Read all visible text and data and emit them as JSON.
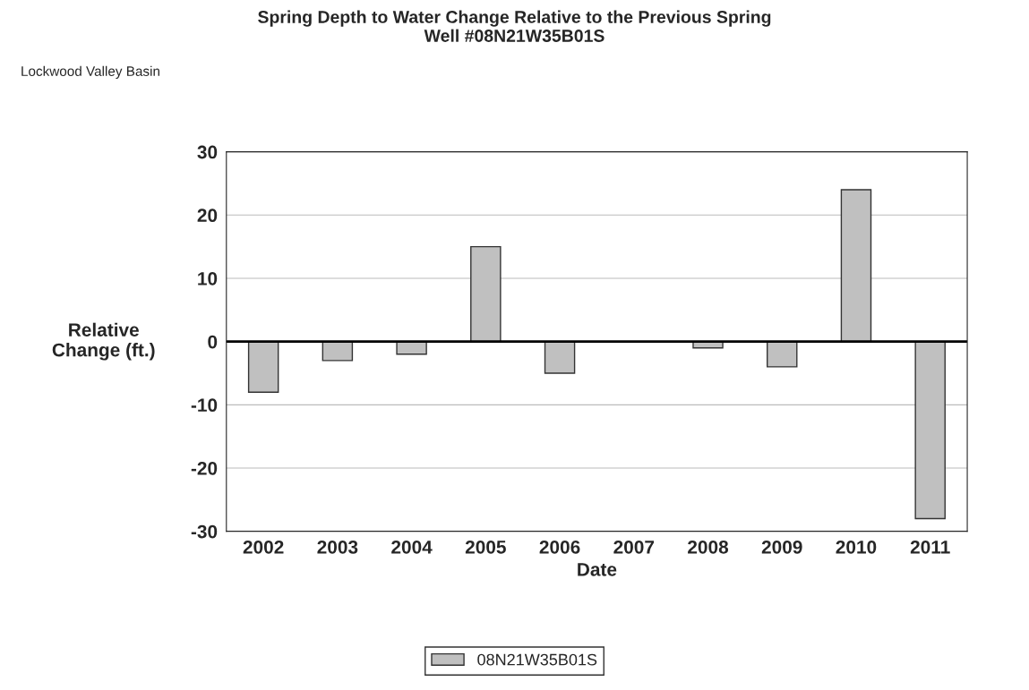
{
  "chart_data": {
    "type": "bar",
    "title": "Spring Depth to Water Change Relative to the Previous Spring\nWell #08N21W35B01S",
    "annotations": [
      "Lockwood Valley Basin"
    ],
    "xlabel": "Date",
    "ylabel": "Relative\nChange (ft.)",
    "categories": [
      "2002",
      "2003",
      "2004",
      "2005",
      "2006",
      "2007",
      "2008",
      "2009",
      "2010",
      "2011"
    ],
    "series": [
      {
        "name": "08N21W35B01S",
        "color": "#c0c0c0",
        "values": [
          -8,
          -3,
          -2,
          15,
          -5,
          null,
          -1,
          -4,
          24,
          -28
        ]
      }
    ],
    "ylim": [
      -30,
      30
    ],
    "yticks": [
      -30,
      -20,
      -10,
      0,
      10,
      20,
      30
    ],
    "grid": "y",
    "legend": "bottom"
  }
}
